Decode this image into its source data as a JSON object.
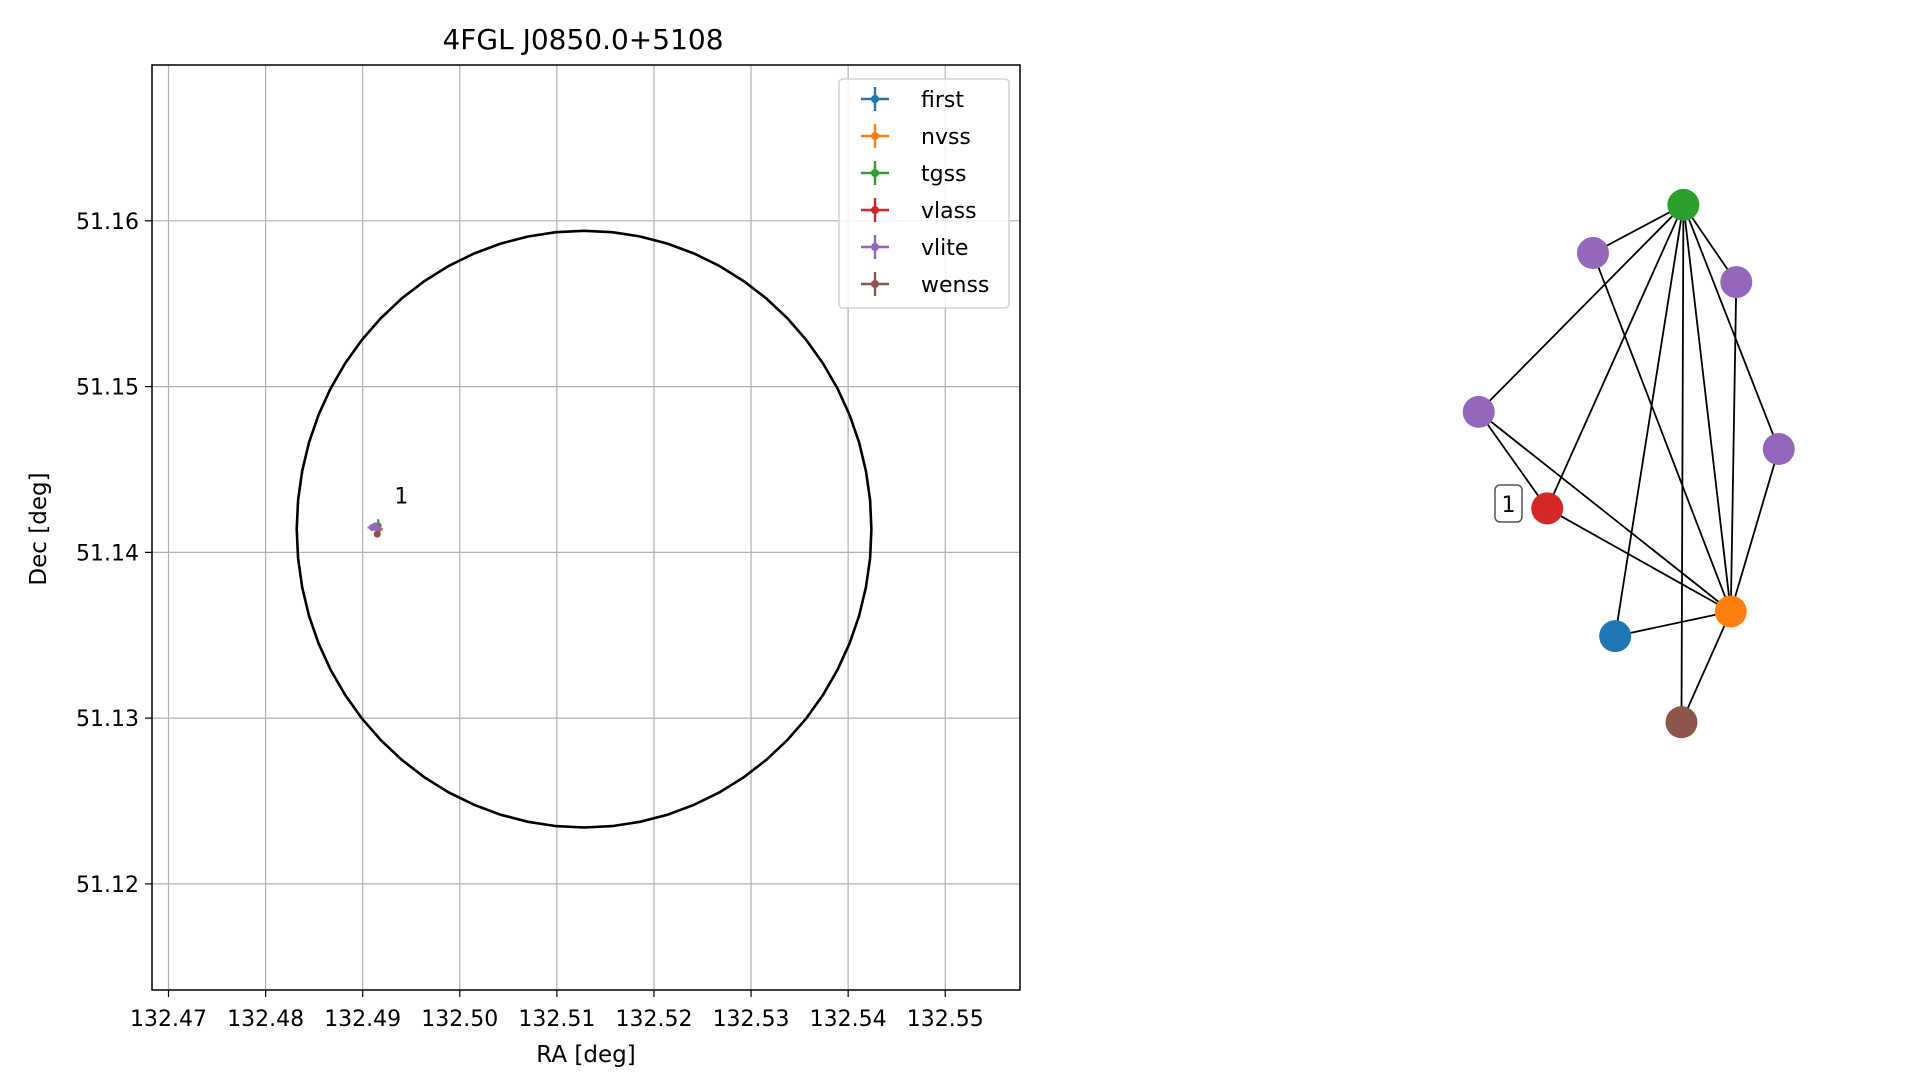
{
  "chart_data": [
    {
      "type": "scatter",
      "title": "4FGL J0850.0+5108",
      "xlabel": "RA [deg]",
      "ylabel": "Dec [deg]",
      "xlim": [
        132.4683,
        132.5577
      ],
      "ylim": [
        51.1136,
        51.1694
      ],
      "xticks": [
        "132.47",
        "132.48",
        "132.49",
        "132.50",
        "132.51",
        "132.52",
        "132.53",
        "132.54",
        "132.55"
      ],
      "yticks": [
        "51.12",
        "51.13",
        "51.14",
        "51.15",
        "51.16"
      ],
      "grid": true,
      "legend_position": "top-right",
      "ellipse": {
        "center_ra": 132.5128,
        "center_dec": 51.1414,
        "half_width_ra": 0.0296,
        "half_height_dec": 0.018,
        "color": "#000000"
      },
      "label_annotation": {
        "text": "1",
        "ra": 132.4912,
        "dec": 51.1426
      },
      "series": [
        {
          "name": "first",
          "color": "#1f77b4",
          "points": [
            {
              "ra": 132.4915,
              "dec": 51.1415,
              "ra_err": 0.0004,
              "dec_err": 0.0003
            }
          ]
        },
        {
          "name": "nvss",
          "color": "#ff7f0e",
          "points": [
            {
              "ra": 132.4916,
              "dec": 51.1414,
              "ra_err": 0.0005,
              "dec_err": 0.0004
            }
          ]
        },
        {
          "name": "tgss",
          "color": "#2ca02c",
          "points": [
            {
              "ra": 132.4916,
              "dec": 51.1416,
              "ra_err": 0.0002,
              "dec_err": 0.0004
            }
          ]
        },
        {
          "name": "vlass",
          "color": "#d62728",
          "points": [
            {
              "ra": 132.4915,
              "dec": 51.1415,
              "ra_err": 0.0002,
              "dec_err": 0.0002
            }
          ]
        },
        {
          "name": "vlite",
          "color": "#9467bd",
          "points": [
            {
              "ra": 132.491,
              "dec": 51.1415,
              "ra_err": 0.0005,
              "dec_err": 0.0002
            },
            {
              "ra": 132.4914,
              "dec": 51.1415,
              "ra_err": 0.0003,
              "dec_err": 0.0002
            },
            {
              "ra": 132.4916,
              "dec": 51.1414,
              "ra_err": 0.0003,
              "dec_err": 0.0002
            },
            {
              "ra": 132.4913,
              "dec": 51.1416,
              "ra_err": 0.0003,
              "dec_err": 0.0002
            }
          ]
        },
        {
          "name": "wenss",
          "color": "#8c564b",
          "points": [
            {
              "ra": 132.4915,
              "dec": 51.1411,
              "ra_err": 0.0003,
              "dec_err": 0.0002
            }
          ]
        }
      ]
    },
    {
      "type": "network",
      "box_label": "1",
      "nodes": [
        {
          "id": "tgss",
          "catalog": "tgss",
          "color": "#2ca02c",
          "x": 0.527,
          "y": 0.832
        },
        {
          "id": "vlite_a",
          "catalog": "vlite",
          "color": "#9467bd",
          "x": 0.197,
          "y": 0.67
        },
        {
          "id": "vlite_b",
          "catalog": "vlite",
          "color": "#9467bd",
          "x": 0.72,
          "y": 0.572
        },
        {
          "id": "vlite_c",
          "catalog": "vlite",
          "color": "#9467bd",
          "x": -0.22,
          "y": 0.135
        },
        {
          "id": "vlite_d",
          "catalog": "vlite",
          "color": "#9467bd",
          "x": 0.875,
          "y": 0.01
        },
        {
          "id": "vlass",
          "catalog": "vlass",
          "color": "#d62728",
          "x": 0.03,
          "y": -0.19
        },
        {
          "id": "nvss",
          "catalog": "nvss",
          "color": "#ff7f0e",
          "x": 0.7,
          "y": -0.537
        },
        {
          "id": "first",
          "catalog": "first",
          "color": "#1f77b4",
          "x": 0.278,
          "y": -0.62
        },
        {
          "id": "wenss",
          "catalog": "wenss",
          "color": "#8c564b",
          "x": 0.52,
          "y": -0.91
        }
      ],
      "edges": [
        [
          "tgss",
          "vlite_a"
        ],
        [
          "tgss",
          "vlite_b"
        ],
        [
          "tgss",
          "vlite_c"
        ],
        [
          "tgss",
          "vlass"
        ],
        [
          "tgss",
          "first"
        ],
        [
          "tgss",
          "wenss"
        ],
        [
          "tgss",
          "nvss"
        ],
        [
          "tgss",
          "vlite_d"
        ],
        [
          "vlite_a",
          "nvss"
        ],
        [
          "vlite_b",
          "nvss"
        ],
        [
          "vlite_c",
          "vlass"
        ],
        [
          "vlite_c",
          "nvss"
        ],
        [
          "vlass",
          "nvss"
        ],
        [
          "vlite_d",
          "nvss"
        ],
        [
          "first",
          "nvss"
        ],
        [
          "wenss",
          "nvss"
        ]
      ]
    }
  ]
}
